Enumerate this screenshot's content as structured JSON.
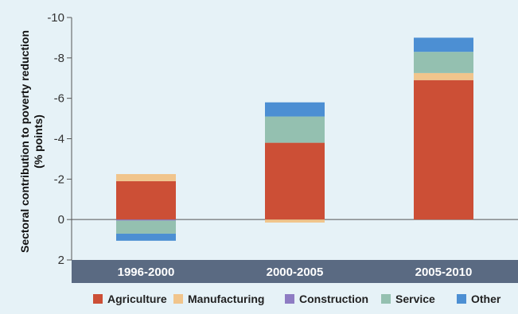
{
  "chart_data": {
    "type": "bar",
    "stacked": true,
    "categories": [
      "1996-2000",
      "2000-2005",
      "2005-2010"
    ],
    "series": [
      {
        "name": "Agriculture",
        "color": "#cc4f36",
        "values": [
          -1.9,
          -3.8,
          -6.9
        ]
      },
      {
        "name": "Manufacturing",
        "color": "#f1c58c",
        "values": [
          -0.35,
          0.15,
          -0.35
        ]
      },
      {
        "name": "Construction",
        "color": "#8e7cc3",
        "values": [
          0.05,
          0,
          0
        ]
      },
      {
        "name": "Service",
        "color": "#94c0b0",
        "values": [
          0.65,
          -1.3,
          -1.05
        ]
      },
      {
        "name": "Other",
        "color": "#4c8fd3",
        "values": [
          0.35,
          -0.7,
          -0.7
        ]
      }
    ],
    "ylabel": [
      "Sectoral contribution to poverty reduction",
      "(% points)"
    ],
    "yticks": [
      "-10",
      "-8",
      "-6",
      "-4",
      "-2",
      "0",
      "2"
    ],
    "ylim": [
      2,
      -10
    ],
    "xlabel": "",
    "title": "",
    "legend_position": "bottom",
    "category_band_color": "#5a6a82"
  }
}
